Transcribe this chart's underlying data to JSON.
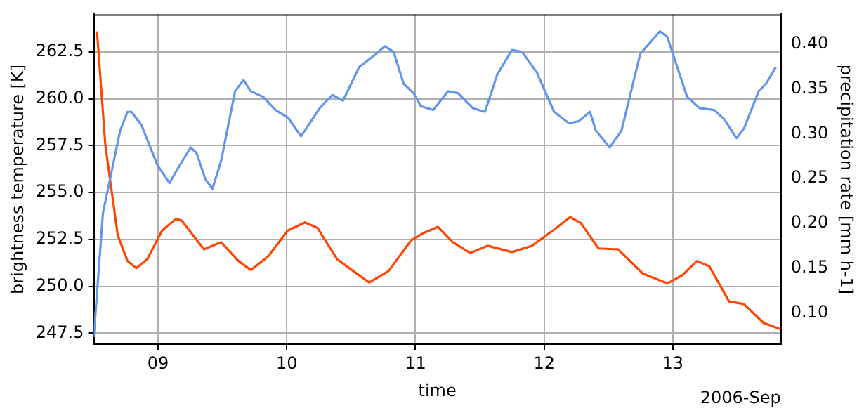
{
  "chart_data": {
    "type": "line",
    "xlabel": "time",
    "ylabel": "brightness temperature [K]",
    "y2label": "precipitation rate [mm h-1]",
    "annotations": [
      "2006-Sep"
    ],
    "xlim": [
      8.5,
      13.84
    ],
    "xticks": [
      {
        "value": 9,
        "label": "09"
      },
      {
        "value": 10,
        "label": "10"
      },
      {
        "value": 11,
        "label": "11"
      },
      {
        "value": 12,
        "label": "12"
      },
      {
        "value": 13,
        "label": "13"
      }
    ],
    "ylim": [
      246.9,
      264.5
    ],
    "yticks": [
      {
        "value": 247.5,
        "label": "247.5"
      },
      {
        "value": 250,
        "label": "250.0"
      },
      {
        "value": 252.5,
        "label": "252.5"
      },
      {
        "value": 255,
        "label": "255.0"
      },
      {
        "value": 257.5,
        "label": "257.5"
      },
      {
        "value": 260,
        "label": "260.0"
      },
      {
        "value": 262.5,
        "label": "262.5"
      }
    ],
    "y2lim": [
      0.065,
      0.433
    ],
    "y2ticks": [
      {
        "value": 0.1,
        "label": "0.10"
      },
      {
        "value": 0.15,
        "label": "0.15"
      },
      {
        "value": 0.2,
        "label": "0.20"
      },
      {
        "value": 0.25,
        "label": "0.25"
      },
      {
        "value": 0.3,
        "label": "0.30"
      },
      {
        "value": 0.35,
        "label": "0.35"
      },
      {
        "value": 0.4,
        "label": "0.40"
      }
    ],
    "grid": true,
    "legend": false,
    "marker": "none",
    "line_style": "solid",
    "series": [
      {
        "color": "#6495ed",
        "x": [
          8.5,
          8.571,
          8.705,
          8.762,
          8.793,
          8.87,
          8.992,
          9.088,
          9.146,
          9.253,
          9.299,
          9.368,
          9.422,
          9.49,
          9.598,
          9.663,
          9.72,
          9.816,
          9.912,
          10.008,
          10.111,
          10.256,
          10.353,
          10.437,
          10.563,
          10.678,
          10.762,
          10.83,
          10.908,
          10.985,
          11.042,
          11.138,
          11.253,
          11.33,
          11.445,
          11.54,
          11.636,
          11.75,
          11.828,
          11.943,
          12.077,
          12.192,
          12.268,
          12.356,
          12.402,
          12.509,
          12.601,
          12.747,
          12.9,
          12.957,
          13.111,
          13.207,
          13.322,
          13.4,
          13.494,
          13.552,
          13.667,
          13.724,
          13.801
        ],
        "values": [
          247.3,
          253.9,
          258.3,
          259.3,
          259.3,
          258.6,
          256.5,
          255.5,
          256.2,
          257.4,
          257.1,
          255.7,
          255.2,
          256.7,
          260.4,
          261,
          260.4,
          260.1,
          259.4,
          259,
          258,
          259.5,
          260.2,
          259.9,
          261.7,
          262.3,
          262.8,
          262.5,
          260.8,
          260.3,
          259.6,
          259.4,
          260.4,
          260.3,
          259.5,
          259.3,
          261.3,
          262.6,
          262.5,
          261.4,
          259.3,
          258.7,
          258.8,
          259.3,
          258.3,
          257.4,
          258.3,
          262.4,
          263.6,
          263.3,
          260.1,
          259.5,
          259.4,
          258.9,
          257.9,
          258.4,
          260.4,
          260.8,
          261.7
        ]
      },
      {
        "color": "#ff4500",
        "axis": "y2",
        "x": [
          8.525,
          8.59,
          8.686,
          8.762,
          8.831,
          8.916,
          9.031,
          9.138,
          9.184,
          9.356,
          9.49,
          9.624,
          9.72,
          9.854,
          10.008,
          10.141,
          10.238,
          10.391,
          10.486,
          10.64,
          10.793,
          10.966,
          11.06,
          11.175,
          11.29,
          11.425,
          11.56,
          11.75,
          11.905,
          12.077,
          12.203,
          12.287,
          12.422,
          12.575,
          12.767,
          12.957,
          13.072,
          13.187,
          13.284,
          13.437,
          13.552,
          13.705,
          13.839
        ],
        "values": [
          0.414,
          0.287,
          0.187,
          0.158,
          0.15,
          0.16,
          0.192,
          0.205,
          0.203,
          0.171,
          0.179,
          0.158,
          0.148,
          0.163,
          0.192,
          0.201,
          0.195,
          0.16,
          0.15,
          0.134,
          0.147,
          0.181,
          0.189,
          0.196,
          0.179,
          0.167,
          0.175,
          0.168,
          0.175,
          0.193,
          0.207,
          0.2,
          0.172,
          0.171,
          0.144,
          0.133,
          0.142,
          0.158,
          0.152,
          0.113,
          0.11,
          0.089,
          0.082
        ]
      }
    ]
  }
}
